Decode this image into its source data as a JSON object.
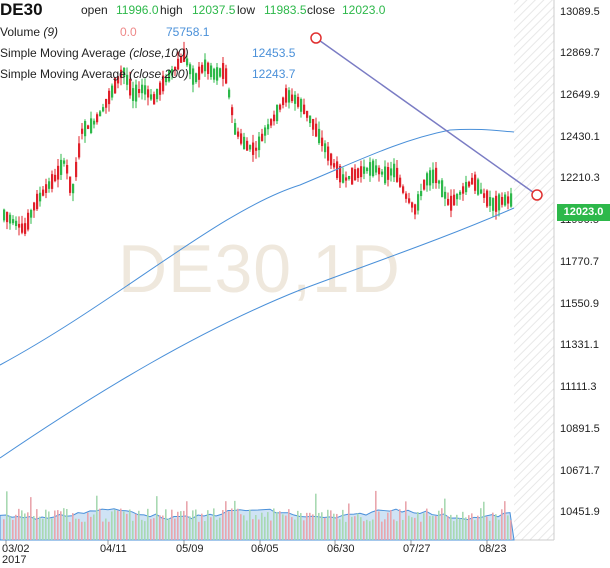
{
  "instrument": {
    "symbol": "DE30",
    "open_label": "open",
    "open": "11996.0",
    "high_label": "high",
    "high": "12037.5",
    "low_label": "low",
    "low": "11983.5",
    "close_label": "close",
    "close": "12023.0"
  },
  "indicators": {
    "volume_label": "Volume",
    "volume_param": "(9)",
    "volume_change": "0.0",
    "volume_value": "75758.1",
    "sma100_label": "Simple Moving Average",
    "sma100_param": "(close,100)",
    "sma100_value": "12453.5",
    "sma200_label": "Simple Moving Average",
    "sma200_param": "(close,200)",
    "sma200_value": "12243.7"
  },
  "watermark": "DE30,1D",
  "current_price_tag": "12023.0",
  "colors": {
    "up": "#2db84a",
    "down": "#e0202a",
    "sma": "#4a90d9",
    "trendline": "#7a7cc4",
    "volume_area": "#cfe3f5"
  },
  "chart_data": {
    "type": "candlestick",
    "y_axis_ticks": [
      "13089.5",
      "12869.7",
      "12649.9",
      "12430.1",
      "12210.3",
      "11990.5",
      "11770.7",
      "11550.9",
      "11331.1",
      "11111.3",
      "10891.5",
      "10671.7",
      "10451.9"
    ],
    "x_axis_ticks": [
      "03/02",
      "04/11",
      "05/09",
      "06/05",
      "06/30",
      "07/27",
      "08/23"
    ],
    "x_axis_year": "2017",
    "ylim": [
      10400,
      13120
    ],
    "annotations": [
      "trendline"
    ]
  }
}
